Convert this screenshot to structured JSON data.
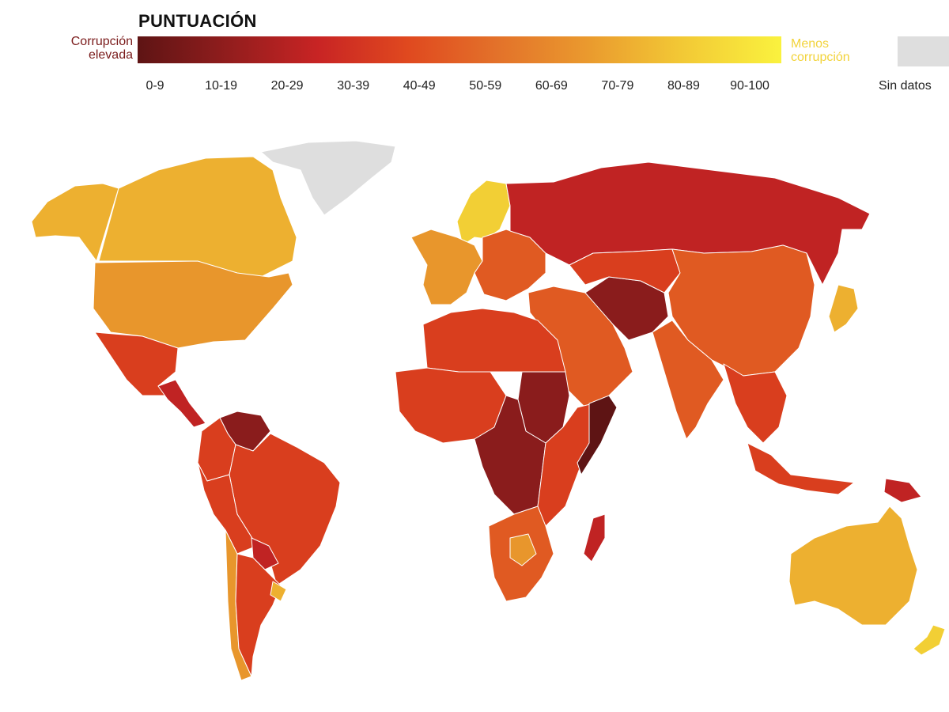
{
  "legend": {
    "title": "PUNTUACIÓN",
    "high_corruption": [
      "Corrupción",
      "elevada"
    ],
    "low_corruption": [
      "Menos",
      "corrupción"
    ],
    "high_color": "#7a1a1a",
    "low_color": "#f2d33a",
    "ranges": [
      "0-9",
      "10-19",
      "20-29",
      "30-39",
      "40-49",
      "50-59",
      "60-69",
      "70-79",
      "80-89",
      "90-100"
    ],
    "range_colors": [
      "#5e1414",
      "#8a1c1c",
      "#c02323",
      "#d93e1e",
      "#e05a22",
      "#e37628",
      "#e8962c",
      "#edb030",
      "#f2cf35",
      "#f8ee3c"
    ],
    "no_data_label": "Sin datos",
    "no_data_color": "#dedede"
  },
  "map": {
    "regions": [
      {
        "name": "alaska",
        "score_range": "70-79"
      },
      {
        "name": "canada",
        "score_range": "70-79"
      },
      {
        "name": "greenland",
        "score_range": "Sin datos"
      },
      {
        "name": "usa",
        "score_range": "60-69"
      },
      {
        "name": "mexico",
        "score_range": "30-39"
      },
      {
        "name": "central-america",
        "score_range": "20-29"
      },
      {
        "name": "venezuela",
        "score_range": "10-19"
      },
      {
        "name": "colombia",
        "score_range": "30-39"
      },
      {
        "name": "brazil",
        "score_range": "30-39"
      },
      {
        "name": "peru-bolivia",
        "score_range": "30-39"
      },
      {
        "name": "paraguay",
        "score_range": "20-29"
      },
      {
        "name": "argentina",
        "score_range": "30-39"
      },
      {
        "name": "chile",
        "score_range": "60-69"
      },
      {
        "name": "uruguay",
        "score_range": "70-79"
      },
      {
        "name": "western-europe",
        "score_range": "60-69"
      },
      {
        "name": "scandinavia",
        "score_range": "80-89"
      },
      {
        "name": "eastern-europe",
        "score_range": "40-49"
      },
      {
        "name": "russia",
        "score_range": "20-29"
      },
      {
        "name": "north-africa",
        "score_range": "30-39"
      },
      {
        "name": "west-africa",
        "score_range": "30-39"
      },
      {
        "name": "sudan",
        "score_range": "10-19"
      },
      {
        "name": "central-africa",
        "score_range": "10-19"
      },
      {
        "name": "east-africa",
        "score_range": "30-39"
      },
      {
        "name": "somalia",
        "score_range": "0-9"
      },
      {
        "name": "southern-africa",
        "score_range": "40-49"
      },
      {
        "name": "botswana",
        "score_range": "60-69"
      },
      {
        "name": "madagascar",
        "score_range": "20-29"
      },
      {
        "name": "middle-east",
        "score_range": "40-49"
      },
      {
        "name": "iran-afghanistan",
        "score_range": "10-19"
      },
      {
        "name": "central-asia",
        "score_range": "30-39"
      },
      {
        "name": "china",
        "score_range": "40-49"
      },
      {
        "name": "india",
        "score_range": "40-49"
      },
      {
        "name": "southeast-asia",
        "score_range": "30-39"
      },
      {
        "name": "indonesia",
        "score_range": "30-39"
      },
      {
        "name": "japan",
        "score_range": "70-79"
      },
      {
        "name": "papua-new-guinea",
        "score_range": "20-29"
      },
      {
        "name": "australia",
        "score_range": "70-79"
      },
      {
        "name": "new-zealand",
        "score_range": "80-89"
      }
    ]
  }
}
